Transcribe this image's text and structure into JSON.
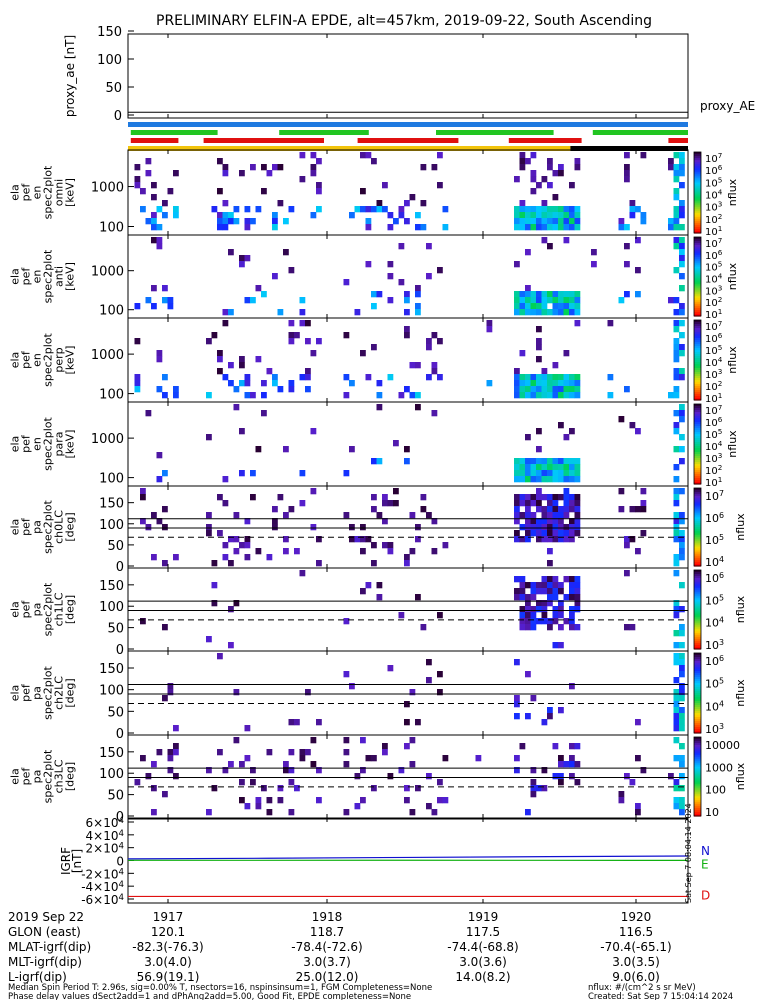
{
  "title": "PRELIMINARY ELFIN-A EPDE, alt=457km, 2019-09-22, South Ascending",
  "vertical_stamp": "Sat Sep 7 08:04:14 2024",
  "chart_data": {
    "type": "heatmap",
    "x_ticks": [
      "1917",
      "1918",
      "1919",
      "1920"
    ],
    "x_range_minutes_label": "2019 Sep 22",
    "proxy_ae": {
      "ylabel": "proxy_ae [nT]",
      "legend": "proxy_AE",
      "yticks": [
        "150",
        "100",
        "50",
        "0"
      ],
      "ylim": [
        0,
        150
      ],
      "value": 5
    },
    "status_bars": [
      {
        "color": "#1f7ae0",
        "segments": [
          [
            0,
            1
          ]
        ]
      },
      {
        "color": "#21c521",
        "segments": [
          [
            0.005,
            0.16
          ],
          [
            0.27,
            0.43
          ],
          [
            0.55,
            0.76
          ],
          [
            0.83,
            1
          ]
        ]
      },
      {
        "color": "#e01010",
        "segments": [
          [
            0.005,
            0.09
          ],
          [
            0.135,
            0.35
          ],
          [
            0.41,
            0.59
          ],
          [
            0.68,
            0.81
          ],
          [
            0.965,
            1
          ]
        ]
      },
      {
        "color": "#f2c40c",
        "segments": [
          [
            0,
            0.79
          ]
        ]
      },
      {
        "color": "#000000",
        "segments": [
          [
            0.79,
            1
          ]
        ]
      }
    ],
    "energy_panels": [
      {
        "label_lines": [
          "ela",
          "pef",
          "en",
          "spec2plot",
          "omni",
          "[keV]"
        ],
        "yticks": [
          "1000",
          "100"
        ],
        "cb_label": "nflux"
      },
      {
        "label_lines": [
          "ela",
          "pef",
          "en",
          "spec2plot",
          "anti",
          "[keV]"
        ],
        "yticks": [
          "1000",
          "100"
        ],
        "cb_label": "nflux"
      },
      {
        "label_lines": [
          "ela",
          "pef",
          "en",
          "spec2plot",
          "perp",
          "[keV]"
        ],
        "yticks": [
          "1000",
          "100"
        ],
        "cb_label": "nflux"
      },
      {
        "label_lines": [
          "ela",
          "pef",
          "en",
          "spec2plot",
          "para",
          "[keV]"
        ],
        "yticks": [
          "1000",
          "100"
        ],
        "cb_label": "nflux"
      }
    ],
    "energy_colorbar_ticks": [
      "10^7",
      "10^6",
      "10^5",
      "10^4",
      "10^3",
      "10^2",
      "10^1"
    ],
    "pa_panels": [
      {
        "label_lines": [
          "ela",
          "pef",
          "pa",
          "spec2plot",
          "ch0LC",
          "[deg]"
        ],
        "yticks": [
          "150",
          "100",
          "50",
          "0"
        ],
        "cb_ticks": [
          "10^7",
          "10^6",
          "10^5",
          "10^4"
        ],
        "cb_label": "nflux"
      },
      {
        "label_lines": [
          "ela",
          "pef",
          "pa",
          "spec2plot",
          "ch1LC",
          "[deg]"
        ],
        "yticks": [
          "150",
          "100",
          "50",
          "0"
        ],
        "cb_ticks": [
          "10^6",
          "10^5",
          "10^4",
          "10^3"
        ],
        "cb_label": "nflux"
      },
      {
        "label_lines": [
          "ela",
          "pef",
          "pa",
          "spec2plot",
          "ch2LC",
          "[deg]"
        ],
        "yticks": [
          "150",
          "100",
          "50",
          "0"
        ],
        "cb_ticks": [
          "10^6",
          "10^5",
          "10^4",
          "10^3"
        ],
        "cb_label": "nflux"
      },
      {
        "label_lines": [
          "ela",
          "pef",
          "pa",
          "spec2plot",
          "ch3LC",
          "[deg]"
        ],
        "yticks": [
          "150",
          "100",
          "50",
          "0"
        ],
        "cb_ticks": [
          "10000",
          "1000",
          "100",
          "10"
        ],
        "cb_label": "nflux"
      }
    ],
    "igrf": {
      "ylabel_lines": [
        "IGRF",
        "[nT]"
      ],
      "yticks": [
        "6×10^4",
        "4×10^4",
        "2×10^4",
        "0",
        "-2×10^4",
        "-4×10^4",
        "-6×10^4"
      ],
      "ylim": [
        -60000,
        60000
      ],
      "series": [
        {
          "name": "N",
          "color": "#1010d0",
          "values": [
            2500,
            3500,
            4800,
            6000,
            7000
          ]
        },
        {
          "name": "E",
          "color": "#10b010",
          "values": [
            300,
            300,
            400,
            300,
            200
          ]
        },
        {
          "name": "D",
          "color": "#e01010",
          "values": [
            -56000,
            -56000,
            -56000,
            -56000,
            -56000
          ]
        }
      ]
    }
  },
  "footer": {
    "rows": [
      {
        "label": "2019 Sep 22",
        "values": [
          "1917",
          "1918",
          "1919",
          "1920"
        ]
      },
      {
        "label": "GLON (east)",
        "values": [
          "120.1",
          "118.7",
          "117.5",
          "116.5"
        ]
      },
      {
        "label": "MLAT-igrf(dip)",
        "values": [
          "-82.3(-76.3)",
          "-78.4(-72.6)",
          "-74.4(-68.8)",
          "-70.4(-65.1)"
        ]
      },
      {
        "label": "MLT-igrf(dip)",
        "values": [
          "3.0(4.0)",
          "3.0(3.7)",
          "3.0(3.6)",
          "3.0(3.5)"
        ]
      },
      {
        "label": "L-igrf(dip)",
        "values": [
          "56.9(19.1)",
          "25.0(12.0)",
          "14.0(8.2)",
          "9.0(6.0)"
        ]
      }
    ],
    "note1": "Median Spin Period T: 2.96s, sig=0.00% T, nsectors=16, nspinsinsum=1, FGM Completeness=None",
    "note2": "Phase delay values dSect2add=1 and dPhAng2add=5.00, Good Fit, EPDE completeness=None",
    "units": "nflux: #/(cm^2 s sr MeV)",
    "created": "Created: Sat Sep  7 15:04:14 2024"
  }
}
